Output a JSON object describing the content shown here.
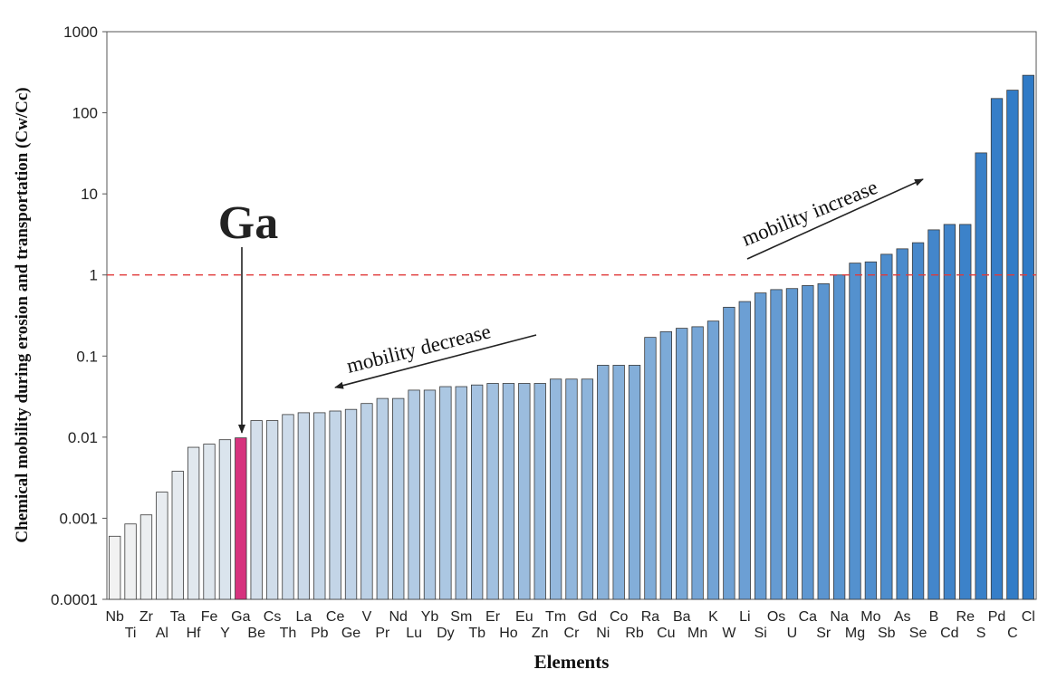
{
  "chart_data": {
    "type": "bar",
    "yscale": "log",
    "ylim": [
      0.0001,
      1000
    ],
    "ytick_labels": [
      "0.0001",
      "0.001",
      "0.01",
      "0.1",
      "1",
      "10",
      "100",
      "1000"
    ],
    "ylabel": "Chemical mobility during erosion and transportation  (Cw/Cc)",
    "xlabel": "Elements",
    "reference_line": {
      "value": 1,
      "color": "#e03a3a",
      "style": "dashed"
    },
    "highlight": {
      "category": "Ga",
      "label": "Ga",
      "color": "#d6337e"
    },
    "annotations": [
      "mobility decrease",
      "mobility increase"
    ],
    "color_gradient": [
      "#f2f2f2",
      "#2f7ac6"
    ],
    "categories": [
      "Nb",
      "Ti",
      "Zr",
      "Al",
      "Ta",
      "Hf",
      "Fe",
      "Y",
      "Ga",
      "Be",
      "Cs",
      "Th",
      "La",
      "Pb",
      "Ce",
      "Ge",
      "V",
      "Pr",
      "Nd",
      "Lu",
      "Yb",
      "Dy",
      "Sm",
      "Tb",
      "Er",
      "Ho",
      "Eu",
      "Zn",
      "Tm",
      "Cr",
      "Gd",
      "Ni",
      "Co",
      "Rb",
      "Ra",
      "Cu",
      "Ba",
      "Mn",
      "K",
      "W",
      "Li",
      "Si",
      "Os",
      "U",
      "Ca",
      "Sr",
      "Na",
      "Mg",
      "Mo",
      "Sb",
      "As",
      "Se",
      "B",
      "Cd",
      "Re",
      "S",
      "Pd",
      "C",
      "Cl"
    ],
    "values": [
      0.0006,
      0.00085,
      0.0011,
      0.0021,
      0.0038,
      0.0075,
      0.0082,
      0.0093,
      0.0098,
      0.016,
      0.016,
      0.019,
      0.02,
      0.02,
      0.021,
      0.022,
      0.026,
      0.03,
      0.03,
      0.038,
      0.038,
      0.042,
      0.042,
      0.044,
      0.046,
      0.046,
      0.046,
      0.046,
      0.052,
      0.052,
      0.052,
      0.077,
      0.077,
      0.077,
      0.17,
      0.2,
      0.22,
      0.23,
      0.27,
      0.4,
      0.47,
      0.6,
      0.66,
      0.68,
      0.74,
      0.78,
      1.0,
      1.4,
      1.45,
      1.8,
      2.1,
      2.5,
      3.6,
      4.2,
      4.2,
      32,
      150,
      190,
      290
    ]
  }
}
